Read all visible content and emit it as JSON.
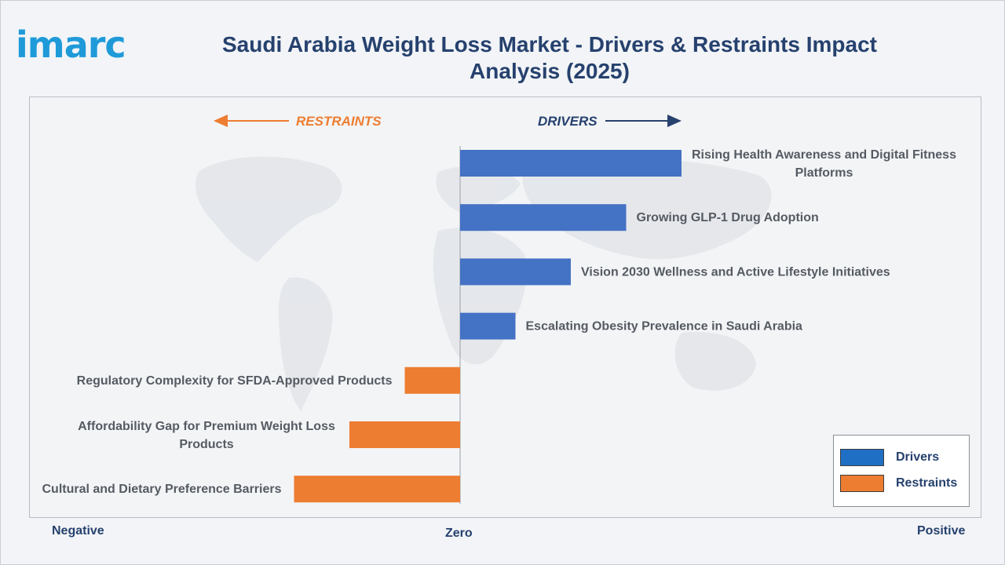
{
  "logo": {
    "text": "imarc"
  },
  "title": "Saudi Arabia Weight Loss Market - Drivers & Restraints Impact Analysis (2025)",
  "headers": {
    "restraints": "RESTRAINTS",
    "drivers": "DRIVERS"
  },
  "axis_labels": {
    "negative": "Negative",
    "zero": "Zero",
    "positive": "Positive"
  },
  "legend": [
    {
      "label": "Drivers",
      "color": "#4472C4"
    },
    {
      "label": "Restraints",
      "color": "#ED7D31"
    }
  ],
  "colors": {
    "drivers": "#4472C4",
    "restraints": "#ED7D31",
    "drivers_header": "#26416e",
    "restraints_header": "#ED7D31"
  },
  "chart_data": {
    "type": "bar",
    "orientation": "horizontal",
    "title": "Saudi Arabia Weight Loss Market - Drivers & Restraints Impact Analysis (2025)",
    "xlim": [
      -5,
      9
    ],
    "series": [
      {
        "name": "Drivers",
        "color": "#4472C4"
      },
      {
        "name": "Restraints",
        "color": "#ED7D31"
      }
    ],
    "bars": [
      {
        "label": "Rising Health Awareness and Digital Fitness Platforms",
        "value": 4,
        "series": "Drivers"
      },
      {
        "label": "Growing GLP-1 Drug Adoption",
        "value": 3,
        "series": "Drivers"
      },
      {
        "label": "Vision 2030 Wellness and Active Lifestyle Initiatives",
        "value": 2,
        "series": "Drivers"
      },
      {
        "label": "Escalating Obesity Prevalence in Saudi Arabia",
        "value": 1,
        "series": "Drivers"
      },
      {
        "label": "Regulatory Complexity for SFDA-Approved Products",
        "value": -1,
        "series": "Restraints"
      },
      {
        "label": "Affordability Gap for Premium Weight Loss Products",
        "value": -2,
        "series": "Restraints"
      },
      {
        "label": "Cultural and Dietary Preference Barriers",
        "value": -3,
        "series": "Restraints"
      }
    ]
  }
}
